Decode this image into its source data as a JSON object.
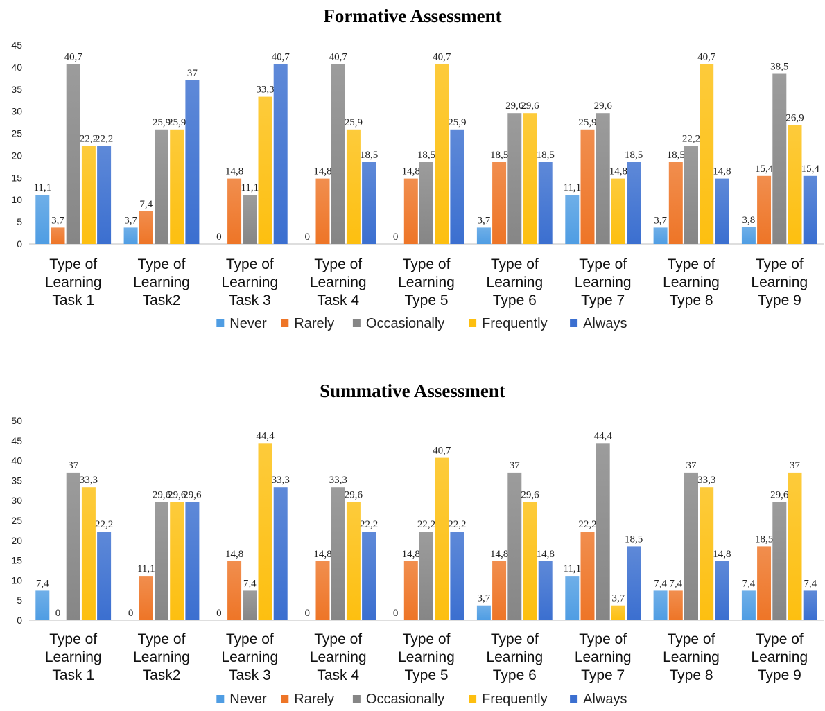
{
  "colors": {
    "Never": "#4f9de3",
    "Rarely": "#ee7527",
    "Occasionally": "#868686",
    "Frequently": "#fdbf10",
    "Always": "#3b6fd0"
  },
  "chart_data": [
    {
      "type": "bar",
      "title": "Formative Assessment",
      "ylim": [
        0,
        45
      ],
      "yticks": [
        0,
        5,
        10,
        15,
        20,
        25,
        30,
        35,
        40,
        45
      ],
      "grid": false,
      "legend_position": "bottom",
      "categories": [
        [
          "Type of",
          "Learning",
          "Task 1"
        ],
        [
          "Type of",
          "Learning",
          "Task2"
        ],
        [
          "Type of",
          "Learning",
          "Task 3"
        ],
        [
          "Type of",
          "Learning",
          "Task 4"
        ],
        [
          "Type of",
          "Learning",
          "Type 5"
        ],
        [
          "Type of",
          "Learning",
          "Type 6"
        ],
        [
          "Type of",
          "Learning",
          "Type 7"
        ],
        [
          "Type of",
          "Learning",
          "Type 8"
        ],
        [
          "Type of",
          "Learning",
          "Type 9"
        ]
      ],
      "series": [
        {
          "name": "Never",
          "values": [
            11.1,
            3.7,
            0,
            0,
            0,
            3.7,
            11.1,
            3.7,
            3.8
          ],
          "labels": [
            "11,1",
            "3,7",
            "0",
            "0",
            "0",
            "3,7",
            "11,1",
            "3,7",
            "3,8"
          ]
        },
        {
          "name": "Rarely",
          "values": [
            3.7,
            7.4,
            14.8,
            14.8,
            14.8,
            18.5,
            25.9,
            18.5,
            15.4
          ],
          "labels": [
            "3,7",
            "7,4",
            "14,8",
            "14,8",
            "14,8",
            "18,5",
            "25,9",
            "18,5",
            "15,4"
          ]
        },
        {
          "name": "Occasionally",
          "values": [
            40.7,
            25.9,
            11.1,
            40.7,
            18.5,
            29.6,
            29.6,
            22.2,
            38.5
          ],
          "labels": [
            "40,7",
            "25,9",
            "11,1",
            "40,7",
            "18,5",
            "29,6",
            "29,6",
            "22,2",
            "38,5"
          ]
        },
        {
          "name": "Frequently",
          "values": [
            22.2,
            25.9,
            33.3,
            25.9,
            40.7,
            29.6,
            14.8,
            40.7,
            26.9
          ],
          "labels": [
            "22,2",
            "25,9",
            "33,3",
            "25,9",
            "40,7",
            "29,6",
            "14,8",
            "40,7",
            "26,9"
          ]
        },
        {
          "name": "Always",
          "values": [
            22.2,
            37,
            40.7,
            18.5,
            25.9,
            18.5,
            18.5,
            14.8,
            15.4
          ],
          "labels": [
            "22,2",
            "37",
            "40,7",
            "18,5",
            "25,9",
            "18,5",
            "18,5",
            "14,8",
            "15,4"
          ]
        }
      ]
    },
    {
      "type": "bar",
      "title": "Summative Assessment",
      "ylim": [
        0,
        50
      ],
      "yticks": [
        0,
        5,
        10,
        15,
        20,
        25,
        30,
        35,
        40,
        45,
        50
      ],
      "grid": false,
      "legend_position": "bottom",
      "categories": [
        [
          "Type of",
          "Learning",
          "Task 1"
        ],
        [
          "Type of",
          "Learning",
          "Task2"
        ],
        [
          "Type of",
          "Learning",
          "Task 3"
        ],
        [
          "Type of",
          "Learning",
          "Task 4"
        ],
        [
          "Type of",
          "Learning",
          "Type 5"
        ],
        [
          "Type of",
          "Learning",
          "Type 6"
        ],
        [
          "Type of",
          "Learning",
          "Type 7"
        ],
        [
          "Type of",
          "Learning",
          "Type 8"
        ],
        [
          "Type of",
          "Learning",
          "Type 9"
        ]
      ],
      "series": [
        {
          "name": "Never",
          "values": [
            7.4,
            0,
            0,
            0,
            0,
            3.7,
            11.1,
            7.4,
            7.4
          ],
          "labels": [
            "7,4",
            "0",
            "0",
            "0",
            "0",
            "3,7",
            "11,1",
            "7,4",
            "7,4"
          ]
        },
        {
          "name": "Rarely",
          "values": [
            0,
            11.1,
            14.8,
            14.8,
            14.8,
            14.8,
            22.2,
            7.4,
            18.5
          ],
          "labels": [
            "0",
            "11,1",
            "14,8",
            "14,8",
            "14,8",
            "14,8",
            "22,2",
            "7,4",
            "18,5"
          ]
        },
        {
          "name": "Occasionally",
          "values": [
            37,
            29.6,
            7.4,
            33.3,
            22.2,
            37,
            44.4,
            37,
            29.6
          ],
          "labels": [
            "37",
            "29,6",
            "7,4",
            "33,3",
            "22,2",
            "37",
            "44,4",
            "37",
            "29,6"
          ]
        },
        {
          "name": "Frequently",
          "values": [
            33.3,
            29.6,
            44.4,
            29.6,
            40.7,
            29.6,
            3.7,
            33.3,
            37
          ],
          "labels": [
            "33,3",
            "29,6",
            "44,4",
            "29,6",
            "40,7",
            "29,6",
            "3,7",
            "33,3",
            "37"
          ]
        },
        {
          "name": "Always",
          "values": [
            22.2,
            29.6,
            33.3,
            22.2,
            22.2,
            14.8,
            18.5,
            14.8,
            7.4
          ],
          "labels": [
            "22,2",
            "29,6",
            "33,3",
            "22,2",
            "22,2",
            "14,8",
            "18,5",
            "14,8",
            "7,4"
          ]
        }
      ]
    }
  ]
}
